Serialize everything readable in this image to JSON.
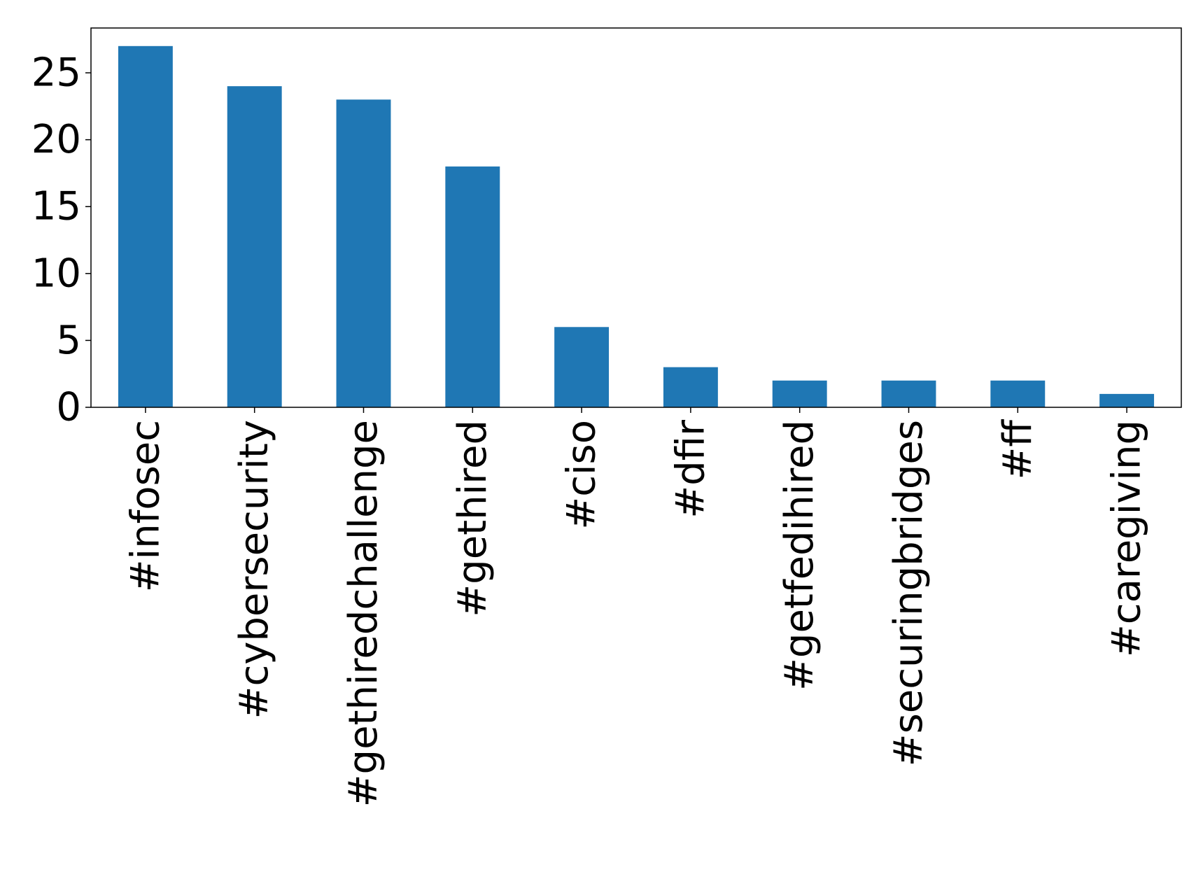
{
  "chart_data": {
    "type": "bar",
    "title": "",
    "xlabel": "",
    "ylabel": "",
    "categories": [
      "#infosec",
      "#cybersecurity",
      "#gethiredchallenge",
      "#gethired",
      "#ciso",
      "#dfir",
      "#getfedihired",
      "#securingbridges",
      "#ff",
      "#caregiving"
    ],
    "values": [
      27,
      24,
      23,
      18,
      6,
      3,
      2,
      2,
      2,
      1
    ],
    "ylim": [
      0,
      28.35
    ],
    "yticks": [
      0,
      5,
      10,
      15,
      20,
      25
    ],
    "grid": false,
    "legend": "none",
    "bar_color": "#1f77b4"
  }
}
